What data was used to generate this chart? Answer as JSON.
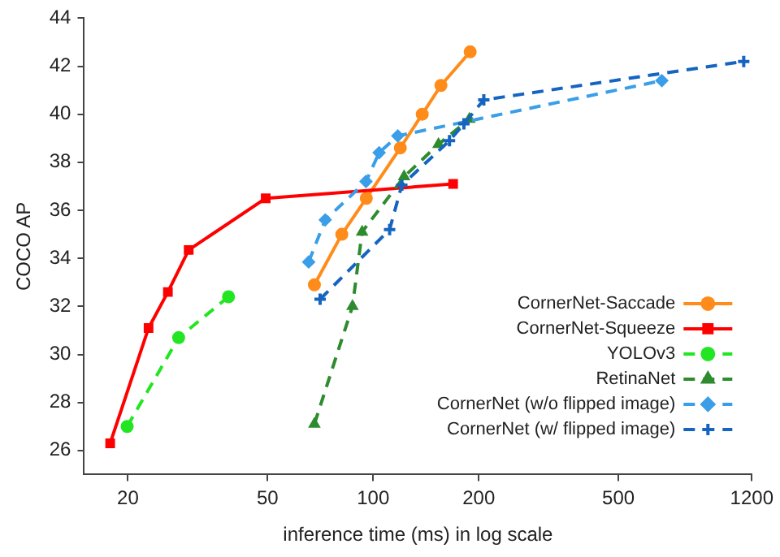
{
  "chart_data": {
    "type": "line",
    "xlabel": "inference time (ms) in log scale",
    "ylabel": "COCO AP",
    "log": "x",
    "xlim": [
      15,
      1200
    ],
    "xticks": [
      20,
      50,
      100,
      200,
      500,
      1200
    ],
    "ylim": [
      25,
      44
    ],
    "yticks": [
      26,
      28,
      30,
      32,
      34,
      36,
      38,
      40,
      42,
      44
    ],
    "grid": false,
    "legend": "bottom right",
    "series": [
      {
        "name": "CornerNet-Saccade",
        "color": "#ff8c1a",
        "marker": "circle",
        "line_style": "solid",
        "x": [
          68,
          81.4,
          95.6,
          119.5,
          138,
          156,
          189
        ],
        "values": [
          32.9,
          35.0,
          36.5,
          38.6,
          40.0,
          41.2,
          42.6
        ]
      },
      {
        "name": "CornerNet-Squeeze",
        "color": "#ff0000",
        "marker": "square",
        "line_style": "solid",
        "x": [
          17.8,
          22.9,
          26.0,
          29.8,
          49.4,
          169
        ],
        "values": [
          26.3,
          31.1,
          32.6,
          34.35,
          36.5,
          37.1
        ]
      },
      {
        "name": "YOLOv3",
        "color": "#22e622",
        "marker": "circle",
        "line_style": "dashed",
        "x": [
          19.9,
          27.9,
          38.7
        ],
        "values": [
          27.0,
          30.7,
          32.4
        ]
      },
      {
        "name": "RetinaNet",
        "color": "#2e8b2e",
        "marker": "triangle",
        "line_style": "dashed",
        "x": [
          68,
          87.3,
          93,
          122.5,
          153.5,
          188
        ],
        "values": [
          27.1,
          32.0,
          35.1,
          37.4,
          38.75,
          39.8
        ]
      },
      {
        "name": "CornerNet (w/o flipped image)",
        "color": "#3a9ee8",
        "marker": "diamond",
        "line_style": "dashed",
        "x": [
          65.5,
          73,
          95.4,
          104,
          117.5,
          665
        ],
        "values": [
          33.85,
          35.6,
          37.2,
          38.4,
          39.1,
          41.4
        ]
      },
      {
        "name": "CornerNet (w/ flipped image)",
        "color": "#1565c0",
        "marker": "cross",
        "line_style": "dashed",
        "x": [
          70.6,
          111.4,
          120.7,
          165,
          181.4,
          206.7,
          1138
        ],
        "values": [
          32.3,
          35.2,
          37.05,
          38.9,
          39.6,
          40.6,
          42.2
        ]
      }
    ]
  }
}
